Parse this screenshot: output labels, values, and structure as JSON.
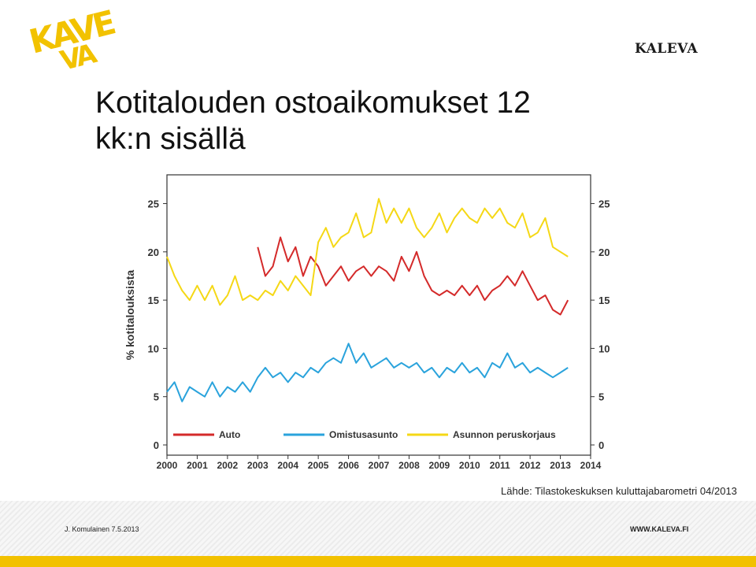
{
  "slide": {
    "title_line1": "Kotitalouden ostoaikomukset 12",
    "title_line2": "kk:n sisällä",
    "brand": "KALEVA",
    "logo_text": "KAVE",
    "source": "Lähde: Tilastokeskuksen kuluttajabarometri 04/2013",
    "footer_left": "J. Komulainen 7.5.2013",
    "footer_right": "WWW.KALEVA.FI"
  },
  "colors": {
    "auto": "#d42a2a",
    "omistusasunto": "#2aa3dc",
    "peruskorjaus": "#f5d816",
    "accent_yellow": "#f2c100"
  },
  "chart_data": {
    "type": "line",
    "title": "",
    "ylabel": "% kotitalouksista",
    "xlim": [
      2000,
      2014
    ],
    "ylim": [
      0,
      27
    ],
    "yticks": [
      0,
      5,
      10,
      15,
      20,
      25
    ],
    "xticks": [
      "2000",
      "2001",
      "2002",
      "2003",
      "2004",
      "2005",
      "2006",
      "2007",
      "2008",
      "2009",
      "2010",
      "2011",
      "2012",
      "2013",
      "2014"
    ],
    "legend_position": "bottom-inside",
    "grid": false,
    "series": [
      {
        "name": "Auto",
        "color_key": "auto",
        "x": [
          2003.0,
          2003.25,
          2003.5,
          2003.75,
          2004.0,
          2004.25,
          2004.5,
          2004.75,
          2005.0,
          2005.25,
          2005.5,
          2005.75,
          2006.0,
          2006.25,
          2006.5,
          2006.75,
          2007.0,
          2007.25,
          2007.5,
          2007.75,
          2008.0,
          2008.25,
          2008.5,
          2008.75,
          2009.0,
          2009.25,
          2009.5,
          2009.75,
          2010.0,
          2010.25,
          2010.5,
          2010.75,
          2011.0,
          2011.25,
          2011.5,
          2011.75,
          2012.0,
          2012.25,
          2012.5,
          2012.75,
          2013.0,
          2013.25
        ],
        "y": [
          20.5,
          17.5,
          18.5,
          21.5,
          19.0,
          20.5,
          17.5,
          19.5,
          18.5,
          16.5,
          17.5,
          18.5,
          17.0,
          18.0,
          18.5,
          17.5,
          18.5,
          18.0,
          17.0,
          19.5,
          18.0,
          20.0,
          17.5,
          16.0,
          15.5,
          16.0,
          15.5,
          16.5,
          15.5,
          16.5,
          15.0,
          16.0,
          16.5,
          17.5,
          16.5,
          18.0,
          16.5,
          15.0,
          15.5,
          14.0,
          13.5,
          15.0
        ]
      },
      {
        "name": "Omistusasunto",
        "color_key": "omistusasunto",
        "x": [
          2000.0,
          2000.25,
          2000.5,
          2000.75,
          2001.0,
          2001.25,
          2001.5,
          2001.75,
          2002.0,
          2002.25,
          2002.5,
          2002.75,
          2003.0,
          2003.25,
          2003.5,
          2003.75,
          2004.0,
          2004.25,
          2004.5,
          2004.75,
          2005.0,
          2005.25,
          2005.5,
          2005.75,
          2006.0,
          2006.25,
          2006.5,
          2006.75,
          2007.0,
          2007.25,
          2007.5,
          2007.75,
          2008.0,
          2008.25,
          2008.5,
          2008.75,
          2009.0,
          2009.25,
          2009.5,
          2009.75,
          2010.0,
          2010.25,
          2010.5,
          2010.75,
          2011.0,
          2011.25,
          2011.5,
          2011.75,
          2012.0,
          2012.25,
          2012.5,
          2012.75,
          2013.0,
          2013.25
        ],
        "y": [
          5.5,
          6.5,
          4.5,
          6.0,
          5.5,
          5.0,
          6.5,
          5.0,
          6.0,
          5.5,
          6.5,
          5.5,
          7.0,
          8.0,
          7.0,
          7.5,
          6.5,
          7.5,
          7.0,
          8.0,
          7.5,
          8.5,
          9.0,
          8.5,
          10.5,
          8.5,
          9.5,
          8.0,
          8.5,
          9.0,
          8.0,
          8.5,
          8.0,
          8.5,
          7.5,
          8.0,
          7.0,
          8.0,
          7.5,
          8.5,
          7.5,
          8.0,
          7.0,
          8.5,
          8.0,
          9.5,
          8.0,
          8.5,
          7.5,
          8.0,
          7.5,
          7.0,
          7.5,
          8.0
        ]
      },
      {
        "name": "Asunnon peruskorjaus",
        "color_key": "peruskorjaus",
        "x": [
          2000.0,
          2000.25,
          2000.5,
          2000.75,
          2001.0,
          2001.25,
          2001.5,
          2001.75,
          2002.0,
          2002.25,
          2002.5,
          2002.75,
          2003.0,
          2003.25,
          2003.5,
          2003.75,
          2004.0,
          2004.25,
          2004.5,
          2004.75,
          2005.0,
          2005.25,
          2005.5,
          2005.75,
          2006.0,
          2006.25,
          2006.5,
          2006.75,
          2007.0,
          2007.25,
          2007.5,
          2007.75,
          2008.0,
          2008.25,
          2008.5,
          2008.75,
          2009.0,
          2009.25,
          2009.5,
          2009.75,
          2010.0,
          2010.25,
          2010.5,
          2010.75,
          2011.0,
          2011.25,
          2011.5,
          2011.75,
          2012.0,
          2012.25,
          2012.5,
          2012.75,
          2013.0,
          2013.25
        ],
        "y": [
          19.5,
          17.5,
          16.0,
          15.0,
          16.5,
          15.0,
          16.5,
          14.5,
          15.5,
          17.5,
          15.0,
          15.5,
          15.0,
          16.0,
          15.5,
          17.0,
          16.0,
          17.5,
          16.5,
          15.5,
          21.0,
          22.5,
          20.5,
          21.5,
          22.0,
          24.0,
          21.5,
          22.0,
          25.5,
          23.0,
          24.5,
          23.0,
          24.5,
          22.5,
          21.5,
          22.5,
          24.0,
          22.0,
          23.5,
          24.5,
          23.5,
          23.0,
          24.5,
          23.5,
          24.5,
          23.0,
          22.5,
          24.0,
          21.5,
          22.0,
          23.5,
          20.5,
          20.0,
          19.5
        ]
      }
    ]
  }
}
